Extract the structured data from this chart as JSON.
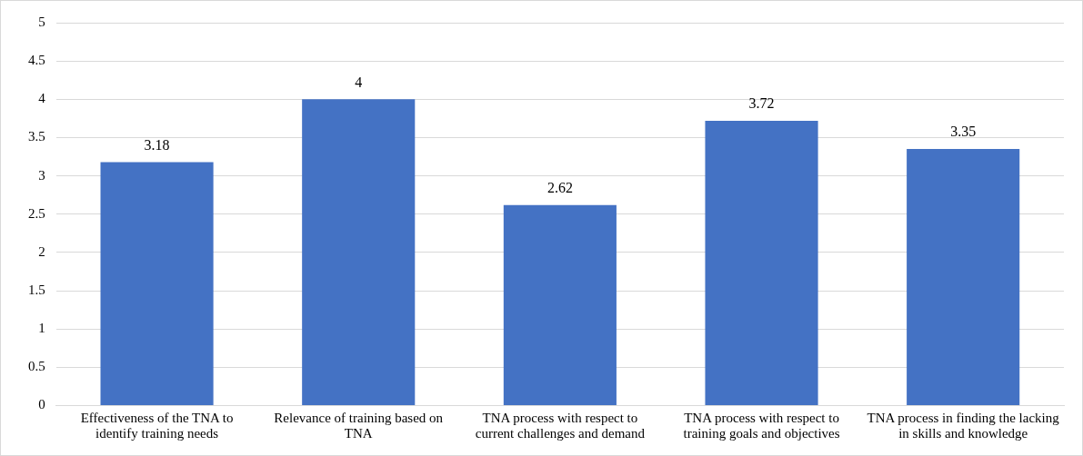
{
  "chart_data": {
    "type": "bar",
    "categories": [
      "Effectiveness of the TNA to identify training needs",
      "Relevance of training based on TNA",
      "TNA process with respect to current challenges and demand",
      "TNA process with respect to training goals and objectives",
      "TNA process in finding the lacking in skills and knowledge"
    ],
    "values": [
      3.18,
      4,
      2.62,
      3.72,
      3.35
    ],
    "color": "#4472c4",
    "ylim": [
      0,
      5
    ],
    "yticks": [
      0,
      0.5,
      1,
      1.5,
      2,
      2.5,
      3,
      3.5,
      4,
      4.5,
      5
    ],
    "grid": "y",
    "legend": false,
    "data_labels": true
  }
}
